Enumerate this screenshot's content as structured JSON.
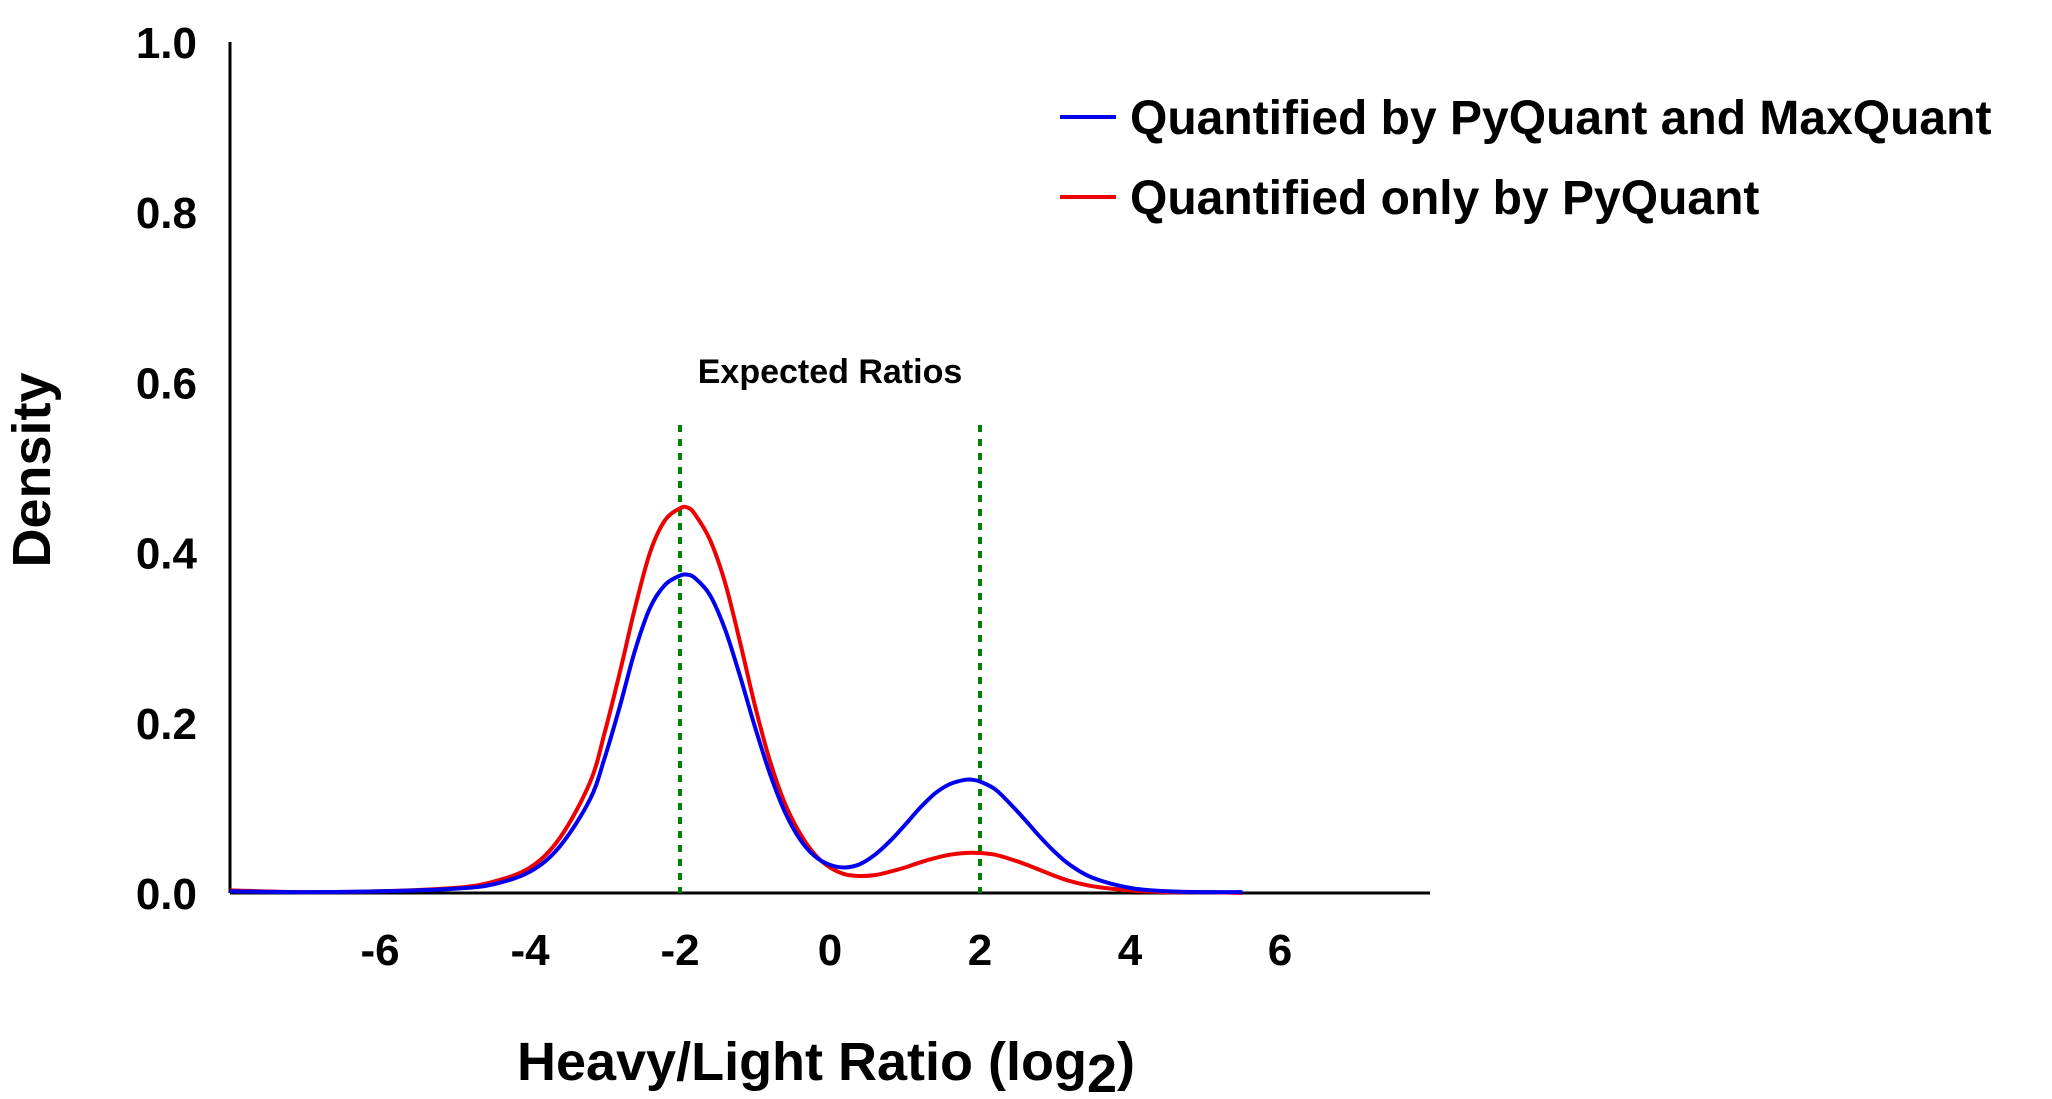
{
  "chart_data": {
    "type": "line",
    "title": "",
    "xlabel": "Heavy/Light Ratio (log",
    "xlabel_subscript": "2",
    "xlabel_suffix": ")",
    "ylabel": "Density",
    "xlim": [
      -8,
      8
    ],
    "ylim": [
      0,
      1.0
    ],
    "x_ticks": [
      "-6",
      "-4",
      "-2",
      "0",
      "2",
      "4",
      "6"
    ],
    "y_ticks": [
      "0.0",
      "0.2",
      "0.4",
      "0.6",
      "0.8",
      "1.0"
    ],
    "grid": false,
    "legend_position": "top-right",
    "series": [
      {
        "name": "Quantified by PyQuant and MaxQuant",
        "color": "#0000ee",
        "x": [
          -8,
          -7,
          -6,
          -5,
          -4.5,
          -4,
          -3.6,
          -3.2,
          -3,
          -2.8,
          -2.6,
          -2.4,
          -2.2,
          -2,
          -1.9,
          -1.8,
          -1.6,
          -1.4,
          -1.2,
          -1,
          -0.8,
          -0.6,
          -0.4,
          -0.2,
          0,
          0.2,
          0.4,
          0.6,
          0.8,
          1,
          1.2,
          1.4,
          1.6,
          1.8,
          1.9,
          2,
          2.2,
          2.4,
          2.6,
          2.8,
          3,
          3.2,
          3.5,
          4,
          4.5,
          5,
          5.5
        ],
        "y": [
          0.002,
          0.001,
          0.002,
          0.005,
          0.01,
          0.025,
          0.055,
          0.11,
          0.16,
          0.22,
          0.285,
          0.335,
          0.362,
          0.373,
          0.374,
          0.37,
          0.35,
          0.31,
          0.255,
          0.195,
          0.14,
          0.095,
          0.063,
          0.043,
          0.033,
          0.03,
          0.034,
          0.045,
          0.061,
          0.08,
          0.1,
          0.117,
          0.128,
          0.133,
          0.133,
          0.131,
          0.122,
          0.105,
          0.086,
          0.066,
          0.048,
          0.033,
          0.018,
          0.006,
          0.002,
          0.001,
          0.001
        ]
      },
      {
        "name": "Quantified only by PyQuant",
        "color": "#ee0000",
        "x": [
          -8,
          -7,
          -6,
          -5,
          -4.5,
          -4,
          -3.6,
          -3.2,
          -3,
          -2.8,
          -2.6,
          -2.4,
          -2.2,
          -2,
          -1.9,
          -1.8,
          -1.6,
          -1.4,
          -1.2,
          -1,
          -0.8,
          -0.6,
          -0.4,
          -0.2,
          0,
          0.2,
          0.4,
          0.6,
          0.8,
          1,
          1.2,
          1.4,
          1.6,
          1.8,
          2,
          2.2,
          2.4,
          2.6,
          2.8,
          3,
          3.2,
          3.5,
          4,
          4.5,
          5,
          5.5
        ],
        "y": [
          0.003,
          0.001,
          0.002,
          0.006,
          0.013,
          0.03,
          0.065,
          0.13,
          0.19,
          0.26,
          0.335,
          0.4,
          0.438,
          0.452,
          0.453,
          0.445,
          0.415,
          0.365,
          0.295,
          0.22,
          0.155,
          0.105,
          0.07,
          0.045,
          0.03,
          0.022,
          0.02,
          0.021,
          0.025,
          0.03,
          0.036,
          0.041,
          0.045,
          0.047,
          0.047,
          0.045,
          0.04,
          0.034,
          0.027,
          0.02,
          0.014,
          0.008,
          0.003,
          0.001,
          0.001,
          0.0
        ]
      }
    ],
    "reference_lines": {
      "label": "Expected Ratios",
      "color": "#008000",
      "x": [
        -2,
        2
      ],
      "y_top": 0.55
    }
  }
}
